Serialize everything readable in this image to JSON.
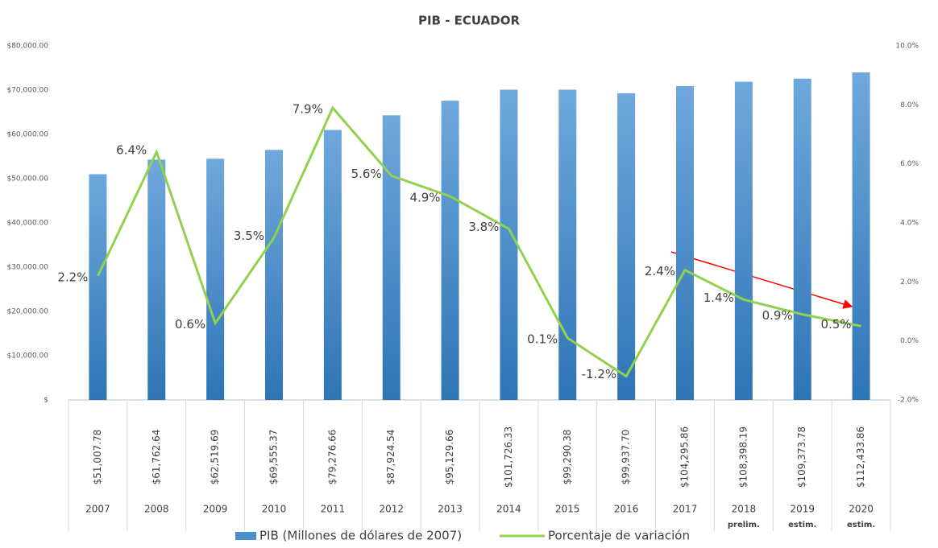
{
  "chart_data": {
    "type": "bar",
    "title": "PIB - ECUADOR",
    "categories": [
      "2007",
      "2008",
      "2009",
      "2010",
      "2011",
      "2012",
      "2013",
      "2014",
      "2015",
      "2016",
      "2017",
      "2018",
      "2019",
      "2020"
    ],
    "category_notes": [
      null,
      null,
      null,
      null,
      null,
      null,
      null,
      null,
      null,
      null,
      null,
      "prelim.",
      "estim.",
      "estim."
    ],
    "data_table": [
      "$51,007.78",
      "$61,762.64",
      "$62,519.69",
      "$69,555.37",
      "$79,276.66",
      "$87,924.54",
      "$95,129.66",
      "$101,726.33",
      "$99,290.38",
      "$99,937.70",
      "$104,295.86",
      "$108,398.19",
      "$109,373.78",
      "$112,433.86"
    ],
    "series": [
      {
        "name": "PIB (Millones de dólares de 2007)",
        "type": "bar",
        "color": "#4a8fd0",
        "values": [
          51000,
          54300,
          54500,
          56500,
          61000,
          64300,
          67600,
          70100,
          70100,
          69300,
          70900,
          71900,
          72600,
          74000
        ]
      },
      {
        "name": "Porcentaje de variación",
        "type": "line",
        "axis": "y2",
        "color": "#92d050",
        "values": [
          2.2,
          6.4,
          0.6,
          3.5,
          7.9,
          5.6,
          4.9,
          3.8,
          0.1,
          -1.2,
          2.4,
          1.4,
          0.9,
          0.5
        ],
        "value_labels": [
          "2.2%",
          "6.4%",
          "0.6%",
          "3.5%",
          "7.9%",
          "5.6%",
          "4.9%",
          "3.8%",
          "0.1%",
          "-1.2%",
          "2.4%",
          "1.4%",
          "0.9%",
          "0.5%"
        ]
      }
    ],
    "ylim": [
      0,
      80000
    ],
    "yticks": [
      {
        "value": 0,
        "label": "$"
      },
      {
        "value": 10000,
        "label": "$10,000.00"
      },
      {
        "value": 20000,
        "label": "$20,000.00"
      },
      {
        "value": 30000,
        "label": "$30,000.00"
      },
      {
        "value": 40000,
        "label": "$40,000.00"
      },
      {
        "value": 50000,
        "label": "$50,000.00"
      },
      {
        "value": 60000,
        "label": "$60,000.00"
      },
      {
        "value": 70000,
        "label": "$70,000.00"
      },
      {
        "value": 80000,
        "label": "$80,000.00"
      }
    ],
    "y2lim": [
      -2,
      10
    ],
    "y2ticks": [
      {
        "value": -2,
        "label": "-2.0%"
      },
      {
        "value": 0,
        "label": "0.0%"
      },
      {
        "value": 2,
        "label": "2.0%"
      },
      {
        "value": 4,
        "label": "4.0%"
      },
      {
        "value": 6,
        "label": "6.0%"
      },
      {
        "value": 8,
        "label": "8.0%"
      },
      {
        "value": 10,
        "label": "10.0%"
      }
    ],
    "grid": false,
    "legend": "bottom"
  }
}
